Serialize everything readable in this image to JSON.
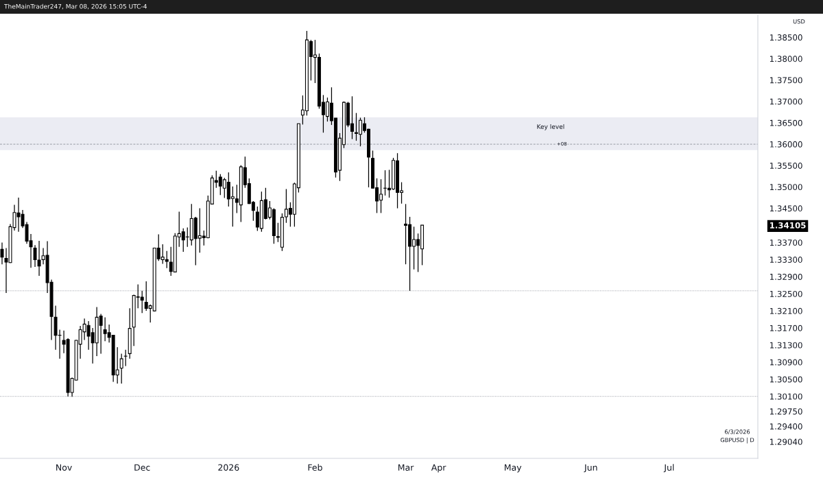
{
  "chart_data": {
    "type": "candlestick",
    "annotations": [
      "TheMainTrader247, Mar 08, 2026 15:05 UTC-4",
      "USD",
      "6/3/2026",
      "GBPUSD | D",
      {
        "text": "+08",
        "y": 1.36
      }
    ],
    "categories": [
      null,
      null,
      null,
      null,
      null,
      null,
      null,
      null,
      null,
      null,
      null,
      null,
      null,
      null,
      null,
      "Nov",
      null,
      null,
      null,
      null,
      null,
      null,
      null,
      null,
      null,
      null,
      null,
      null,
      null,
      null,
      null,
      null,
      null,
      null,
      "Dec",
      null,
      null,
      null,
      null,
      null,
      null,
      null,
      null,
      null,
      null,
      null,
      null,
      null,
      null,
      null,
      null,
      null,
      null,
      null,
      null,
      "2026",
      null,
      null,
      null,
      null,
      null,
      null,
      null,
      null,
      null,
      null,
      null,
      null,
      null,
      null,
      null,
      null,
      null,
      null,
      null,
      null,
      "Feb",
      null,
      null,
      null,
      null,
      null,
      null,
      null,
      null,
      null,
      null,
      null,
      null,
      null,
      null,
      null,
      null,
      null,
      null,
      null,
      null,
      null,
      "Mar",
      null,
      null,
      null,
      null,
      null,
      null,
      null,
      "Apr",
      null,
      null,
      null,
      null,
      null,
      null,
      null,
      null,
      null,
      null,
      null,
      null,
      null,
      null,
      null,
      null,
      null,
      "May",
      null,
      null,
      null,
      null,
      null,
      null,
      null,
      null,
      null,
      null,
      null,
      null,
      null,
      null,
      null,
      null,
      null,
      null,
      "Jun",
      null,
      null,
      null,
      null,
      null,
      null,
      null,
      null,
      null,
      null,
      null,
      null,
      null,
      null,
      null,
      null,
      null,
      null,
      "Jul",
      null,
      null,
      null,
      null,
      null,
      null,
      null,
      null,
      null,
      null,
      null,
      null,
      null,
      null,
      null,
      null,
      null,
      null,
      null,
      null,
      null
    ],
    "ohlc": [
      [
        1.3354,
        1.337,
        1.3319,
        1.3336
      ],
      [
        1.3333,
        1.3357,
        1.3252,
        1.3324
      ],
      [
        1.3323,
        1.3413,
        1.3322,
        1.3407
      ],
      [
        1.3405,
        1.3458,
        1.3398,
        1.344
      ],
      [
        1.3439,
        1.3475,
        1.3395,
        1.343
      ],
      [
        1.3436,
        1.3446,
        1.3404,
        1.3409
      ],
      [
        1.3412,
        1.3418,
        1.3367,
        1.3373
      ],
      [
        1.3374,
        1.339,
        1.3311,
        1.336
      ],
      [
        1.3357,
        1.3364,
        1.3313,
        1.333
      ],
      [
        1.3329,
        1.3374,
        1.3292,
        1.3315
      ],
      [
        1.333,
        1.3357,
        1.3319,
        1.3339
      ],
      [
        1.334,
        1.3373,
        1.3252,
        1.3276
      ],
      [
        1.3277,
        1.3283,
        1.3142,
        1.3197
      ],
      [
        1.3195,
        1.3222,
        1.3119,
        1.3153
      ],
      [
        1.3153,
        1.3166,
        1.3098,
        1.3153
      ],
      [
        1.3141,
        1.3164,
        1.3111,
        1.3132
      ],
      [
        1.3143,
        1.3146,
        1.301,
        1.3019
      ],
      [
        1.3019,
        1.3054,
        1.3009,
        1.3052
      ],
      [
        1.3048,
        1.3142,
        1.3047,
        1.3141
      ],
      [
        1.3132,
        1.3175,
        1.3098,
        1.3166
      ],
      [
        1.3161,
        1.3192,
        1.3142,
        1.3179
      ],
      [
        1.3176,
        1.3186,
        1.3119,
        1.3151
      ],
      [
        1.3159,
        1.317,
        1.3087,
        1.3135
      ],
      [
        1.3135,
        1.3219,
        1.3104,
        1.3195
      ],
      [
        1.3198,
        1.3203,
        1.311,
        1.3176
      ],
      [
        1.3166,
        1.3195,
        1.3139,
        1.3157
      ],
      [
        1.3159,
        1.3178,
        1.3136,
        1.3148
      ],
      [
        1.3153,
        1.3154,
        1.3044,
        1.306
      ],
      [
        1.306,
        1.3125,
        1.304,
        1.3072
      ],
      [
        1.3076,
        1.311,
        1.304,
        1.3098
      ],
      [
        1.3104,
        1.3119,
        1.3081,
        1.3104
      ],
      [
        1.311,
        1.3216,
        1.3098,
        1.3169
      ],
      [
        1.3172,
        1.3248,
        1.3128,
        1.3246
      ],
      [
        1.3243,
        1.3272,
        1.3216,
        1.3242
      ],
      [
        1.3242,
        1.3257,
        1.3205,
        1.3235
      ],
      [
        1.323,
        1.3279,
        1.321,
        1.3216
      ],
      [
        1.3216,
        1.3225,
        1.3183,
        1.3222
      ],
      [
        1.321,
        1.3358,
        1.3209,
        1.3357
      ],
      [
        1.3357,
        1.3389,
        1.3327,
        1.3332
      ],
      [
        1.333,
        1.3366,
        1.332,
        1.3336
      ],
      [
        1.333,
        1.335,
        1.331,
        1.3326
      ],
      [
        1.3324,
        1.336,
        1.3292,
        1.3302
      ],
      [
        1.3301,
        1.3392,
        1.3301,
        1.3385
      ],
      [
        1.3383,
        1.3442,
        1.336,
        1.3391
      ],
      [
        1.3395,
        1.3403,
        1.3348,
        1.3376
      ],
      [
        1.3383,
        1.3405,
        1.336,
        1.3383
      ],
      [
        1.3376,
        1.346,
        1.3363,
        1.3426
      ],
      [
        1.3427,
        1.343,
        1.3317,
        1.3379
      ],
      [
        1.338,
        1.345,
        1.3346,
        1.3386
      ],
      [
        1.3385,
        1.3398,
        1.3363,
        1.3381
      ],
      [
        1.3381,
        1.348,
        1.338,
        1.3467
      ],
      [
        1.346,
        1.3527,
        1.346,
        1.3521
      ],
      [
        1.3515,
        1.3538,
        1.3498,
        1.3511
      ],
      [
        1.3523,
        1.353,
        1.3481,
        1.3502
      ],
      [
        1.3497,
        1.3521,
        1.3474,
        1.3517
      ],
      [
        1.3511,
        1.3534,
        1.3454,
        1.3472
      ],
      [
        1.3473,
        1.3501,
        1.3407,
        1.3477
      ],
      [
        1.3472,
        1.3505,
        1.3439,
        1.3464
      ],
      [
        1.3458,
        1.3551,
        1.3418,
        1.3547
      ],
      [
        1.3545,
        1.3571,
        1.3498,
        1.3505
      ],
      [
        1.3508,
        1.352,
        1.346,
        1.3461
      ],
      [
        1.3464,
        1.3467,
        1.3421,
        1.3445
      ],
      [
        1.3441,
        1.3454,
        1.3397,
        1.3406
      ],
      [
        1.3403,
        1.3489,
        1.3395,
        1.3468
      ],
      [
        1.347,
        1.3498,
        1.3424,
        1.3426
      ],
      [
        1.3429,
        1.3467,
        1.3424,
        1.3451
      ],
      [
        1.3447,
        1.345,
        1.3367,
        1.3386
      ],
      [
        1.3384,
        1.3416,
        1.3371,
        1.3382
      ],
      [
        1.3359,
        1.3438,
        1.335,
        1.3429
      ],
      [
        1.343,
        1.3495,
        1.3416,
        1.3448
      ],
      [
        1.345,
        1.3464,
        1.3407,
        1.3436
      ],
      [
        1.3436,
        1.351,
        1.3407,
        1.3507
      ],
      [
        1.3498,
        1.3648,
        1.3487,
        1.3648
      ],
      [
        1.3668,
        1.3714,
        1.3646,
        1.368
      ],
      [
        1.3678,
        1.3865,
        1.3667,
        1.3844
      ],
      [
        1.384,
        1.3844,
        1.3749,
        1.3805
      ],
      [
        1.3803,
        1.3844,
        1.3743,
        1.3809
      ],
      [
        1.3803,
        1.3812,
        1.3683,
        1.3689
      ],
      [
        1.3698,
        1.3715,
        1.3627,
        1.3669
      ],
      [
        1.3665,
        1.3709,
        1.3653,
        1.3699
      ],
      [
        1.3696,
        1.3733,
        1.3645,
        1.3655
      ],
      [
        1.3661,
        1.3661,
        1.3522,
        1.3535
      ],
      [
        1.3539,
        1.3626,
        1.3514,
        1.3614
      ],
      [
        1.3599,
        1.37,
        1.3591,
        1.3698
      ],
      [
        1.3696,
        1.3699,
        1.364,
        1.3645
      ],
      [
        1.3648,
        1.3712,
        1.3612,
        1.363
      ],
      [
        1.3627,
        1.3673,
        1.3608,
        1.3625
      ],
      [
        1.3623,
        1.3662,
        1.3595,
        1.3656
      ],
      [
        1.3648,
        1.3663,
        1.3627,
        1.3632
      ],
      [
        1.3635,
        1.3636,
        1.3499,
        1.357
      ],
      [
        1.3567,
        1.3585,
        1.3497,
        1.3497
      ],
      [
        1.3498,
        1.352,
        1.3439,
        1.3467
      ],
      [
        1.3469,
        1.3518,
        1.3439,
        1.3483
      ],
      [
        1.3497,
        1.3539,
        1.348,
        1.3497
      ],
      [
        1.3497,
        1.354,
        1.3475,
        1.3493
      ],
      [
        1.3495,
        1.3568,
        1.3493,
        1.3562
      ],
      [
        1.3561,
        1.3579,
        1.345,
        1.3487
      ],
      [
        1.3487,
        1.3511,
        1.3461,
        1.3491
      ],
      [
        1.3413,
        1.346,
        1.3319,
        1.341
      ],
      [
        1.3412,
        1.343,
        1.3257,
        1.3361
      ],
      [
        1.3361,
        1.3407,
        1.3307,
        1.3377
      ],
      [
        1.3377,
        1.3391,
        1.3301,
        1.3363
      ],
      [
        1.3355,
        1.34105,
        1.3317,
        1.34105
      ],
      null,
      null,
      null,
      null,
      null,
      null,
      null,
      null,
      null,
      null,
      null,
      null,
      null,
      null,
      null,
      null,
      null,
      null,
      null,
      null,
      null,
      null,
      null,
      null,
      null,
      null,
      null,
      null,
      null,
      null,
      null,
      null,
      null,
      null,
      null,
      null,
      null,
      null,
      null,
      null,
      null,
      null,
      null,
      null,
      null,
      null,
      null,
      null,
      null,
      null,
      null,
      null,
      null,
      null,
      null,
      null,
      null,
      null,
      null,
      null,
      null,
      null,
      null,
      null,
      null,
      null,
      null,
      null,
      null,
      null,
      null,
      null,
      null,
      null,
      null,
      null,
      null,
      null,
      null,
      null,
      null
    ],
    "ylim": [
      1.2865,
      1.3902
    ],
    "yticks": [
      {
        "value": 1.385,
        "label": "1.38500"
      },
      {
        "value": 1.38,
        "label": "1.38000"
      },
      {
        "value": 1.375,
        "label": "1.37500"
      },
      {
        "value": 1.37,
        "label": "1.37000"
      },
      {
        "value": 1.365,
        "label": "1.36500"
      },
      {
        "value": 1.36,
        "label": "1.36000"
      },
      {
        "value": 1.355,
        "label": "1.35500"
      },
      {
        "value": 1.35,
        "label": "1.35000"
      },
      {
        "value": 1.345,
        "label": "1.34500"
      },
      1.34105,
      {
        "value": 1.337,
        "label": "1.33700"
      },
      {
        "value": 1.333,
        "label": "1.33300"
      },
      {
        "value": 1.329,
        "label": "1.32900"
      },
      {
        "value": 1.325,
        "label": "1.32500"
      },
      {
        "value": 1.321,
        "label": "1.32100"
      },
      {
        "value": 1.317,
        "label": "1.31700"
      },
      {
        "value": 1.313,
        "label": "1.31300"
      },
      {
        "value": 1.309,
        "label": "1.30900"
      },
      {
        "value": 1.305,
        "label": "1.30500"
      },
      {
        "value": 1.301,
        "label": "1.30100"
      },
      {
        "value": 1.2975,
        "label": "1.29750"
      },
      {
        "value": 1.294,
        "label": "1.29400"
      },
      {
        "value": 1.2904,
        "label": "1.29040"
      }
    ],
    "bands": [
      {
        "axis": "y",
        "from": 1.3586,
        "to": 1.3663,
        "label": "Key level",
        "color": "#ebecf3"
      }
    ],
    "ref_lines": [
      {
        "axis": "y",
        "value": 1.36,
        "label": null,
        "color": "#9598a1",
        "line_style": "dashed"
      },
      {
        "axis": "y",
        "value": 1.3257,
        "label": null,
        "color": "#9598a1",
        "line_style": "dotted"
      },
      {
        "axis": "y",
        "value": 1.301,
        "label": null,
        "color": "#9598a1",
        "line_style": "dotted"
      }
    ]
  }
}
